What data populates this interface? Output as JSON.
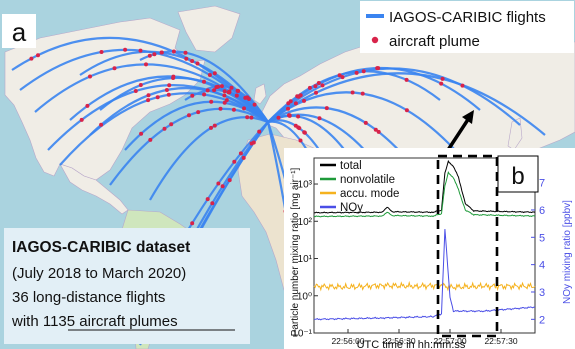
{
  "colors": {
    "ocean": "#aad3df",
    "land": "#f0ede6",
    "land_green": "#cfe6bd",
    "land_desert": "#ece3cf",
    "border": "#b8a7c9",
    "flight": "#3a84f0",
    "plume": "#d8234a",
    "total": "#000000",
    "nonvolatile": "#1f9a3a",
    "accu": "#f5b21e",
    "noy": "#4a4ee6",
    "info_box": "#e2eff6"
  },
  "map": {
    "panel_label": "a",
    "legend": {
      "flights_label": "IAGOS-CARIBIC flights",
      "plume_label": "aircraft plume"
    },
    "info": {
      "title": "IAGOS-CARIBIC dataset",
      "line1": "(July 2018 to March 2020)",
      "line2": "36 long-distance flights",
      "line3": "with 1135 aircraft plumes"
    }
  },
  "chart_data": {
    "type": "line",
    "panel_label": "b",
    "xlabel": "UTC time in hh:mm:ss",
    "ylabel_left": "Particle number mixing ratio [mg air⁻¹]",
    "ylabel_right": "NOy mixing ratio [ppbv]",
    "x_ticks": [
      "22:56:00",
      "22:56:30",
      "22:57:00",
      "22:57:30"
    ],
    "xlim": [
      "22:55:40",
      "22:57:50"
    ],
    "y_left_scale": "log",
    "y_left_ticks": [
      "10⁻¹",
      "10⁰",
      "10¹",
      "10²",
      "10³"
    ],
    "y_left_lim": [
      0.1,
      5000
    ],
    "y_right_ticks": [
      "2",
      "3",
      "4",
      "5",
      "6",
      "7"
    ],
    "y_right_lim": [
      1.5,
      7.9
    ],
    "legend": [
      "total",
      "nonvolatile",
      "accu. mode",
      "NOy"
    ],
    "legend_placement": "top-left",
    "series": [
      {
        "name": "total",
        "axis": "left",
        "points": [
          [
            "22:55:40",
            170
          ],
          [
            "22:56:20",
            175
          ],
          [
            "22:56:23",
            240
          ],
          [
            "22:56:26",
            180
          ],
          [
            "22:56:50",
            175
          ],
          [
            "22:56:55",
            200
          ],
          [
            "22:56:57",
            2000
          ],
          [
            "22:56:59",
            4000
          ],
          [
            "22:57:02",
            3000
          ],
          [
            "22:57:05",
            1500
          ],
          [
            "22:57:09",
            300
          ],
          [
            "22:57:14",
            190
          ],
          [
            "22:57:50",
            175
          ]
        ]
      },
      {
        "name": "nonvolatile",
        "axis": "left",
        "points": [
          [
            "22:55:40",
            135
          ],
          [
            "22:56:20",
            138
          ],
          [
            "22:56:23",
            175
          ],
          [
            "22:56:26",
            142
          ],
          [
            "22:56:50",
            138
          ],
          [
            "22:56:55",
            160
          ],
          [
            "22:56:57",
            900
          ],
          [
            "22:56:59",
            2000
          ],
          [
            "22:57:02",
            1500
          ],
          [
            "22:57:05",
            700
          ],
          [
            "22:57:09",
            200
          ],
          [
            "22:57:14",
            150
          ],
          [
            "22:57:50",
            138
          ]
        ]
      },
      {
        "name": "accu. mode",
        "axis": "left",
        "points": [
          [
            "22:55:40",
            1.8
          ],
          [
            "22:56:00",
            1.7
          ],
          [
            "22:56:20",
            1.9
          ],
          [
            "22:56:40",
            1.8
          ],
          [
            "22:56:55",
            1.9
          ],
          [
            "22:57:00",
            1.7
          ],
          [
            "22:57:20",
            1.8
          ],
          [
            "22:57:50",
            1.8
          ]
        ]
      },
      {
        "name": "NOy",
        "axis": "right",
        "points": [
          [
            "22:55:40",
            2.0
          ],
          [
            "22:56:20",
            2.05
          ],
          [
            "22:56:50",
            2.1
          ],
          [
            "22:56:55",
            2.2
          ],
          [
            "22:56:57",
            5.3
          ],
          [
            "22:56:58",
            4.5
          ],
          [
            "22:57:00",
            2.8
          ],
          [
            "22:57:02",
            2.3
          ],
          [
            "22:57:20",
            2.3
          ],
          [
            "22:57:50",
            2.45
          ]
        ]
      }
    ]
  }
}
